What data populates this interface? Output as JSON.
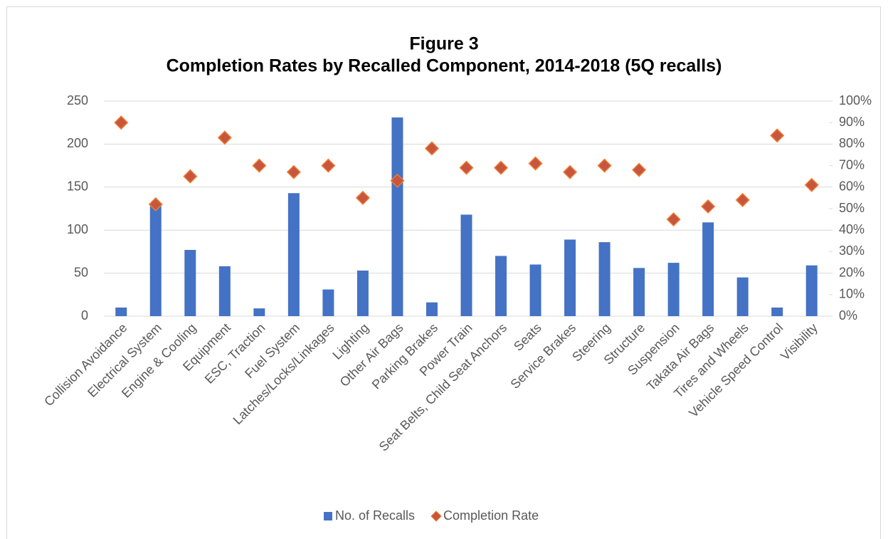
{
  "chart_data": {
    "type": "bar",
    "title": "Figure 3",
    "subtitle": "Completion Rates by Recalled Component, 2014-2018 (5Q recalls)",
    "categories": [
      "Collision Avoidance",
      "Electrical System",
      "Engine & Cooling",
      "Equipment",
      "ESC, Traction",
      "Fuel System",
      "Latches/Locks/Linkages",
      "Lighting",
      "Other Air Bags",
      "Parking Brakes",
      "Power Train",
      "Seat Belts, Child Seat Anchors",
      "Seats",
      "Service Brakes",
      "Steering",
      "Structure",
      "Suspension",
      "Takata Air Bags",
      "Tires and Wheels",
      "Vehicle Speed Control",
      "Visibility"
    ],
    "series": [
      {
        "name": "No. of Recalls",
        "type": "bar",
        "color": "#4472c4",
        "values": [
          10,
          130,
          77,
          58,
          9,
          143,
          31,
          53,
          231,
          16,
          118,
          70,
          60,
          89,
          86,
          56,
          62,
          109,
          45,
          10,
          59
        ]
      },
      {
        "name": "Completion Rate",
        "type": "scatter",
        "axis": "y2",
        "color": "#c8553d",
        "edge_color": "#ed7d31",
        "values": [
          90,
          52,
          65,
          83,
          70,
          67,
          70,
          55,
          63,
          78,
          69,
          69,
          71,
          67,
          70,
          68,
          45,
          51,
          54,
          84,
          61
        ]
      }
    ],
    "ylim": [
      0,
      250
    ],
    "yticks": [
      0,
      50,
      100,
      150,
      200,
      250
    ],
    "y2lim": [
      0,
      100
    ],
    "y2ticks": [
      {
        "value": 0,
        "label": "0%"
      },
      {
        "value": 10,
        "label": "10%"
      },
      {
        "value": 20,
        "label": "20%"
      },
      {
        "value": 30,
        "label": "30%"
      },
      {
        "value": 40,
        "label": "40%"
      },
      {
        "value": 50,
        "label": "50%"
      },
      {
        "value": 60,
        "label": "60%"
      },
      {
        "value": 70,
        "label": "70%"
      },
      {
        "value": 80,
        "label": "80%"
      },
      {
        "value": 90,
        "label": "90%"
      },
      {
        "value": 100,
        "label": "100%"
      }
    ],
    "grid": true,
    "legend": "bottom"
  }
}
